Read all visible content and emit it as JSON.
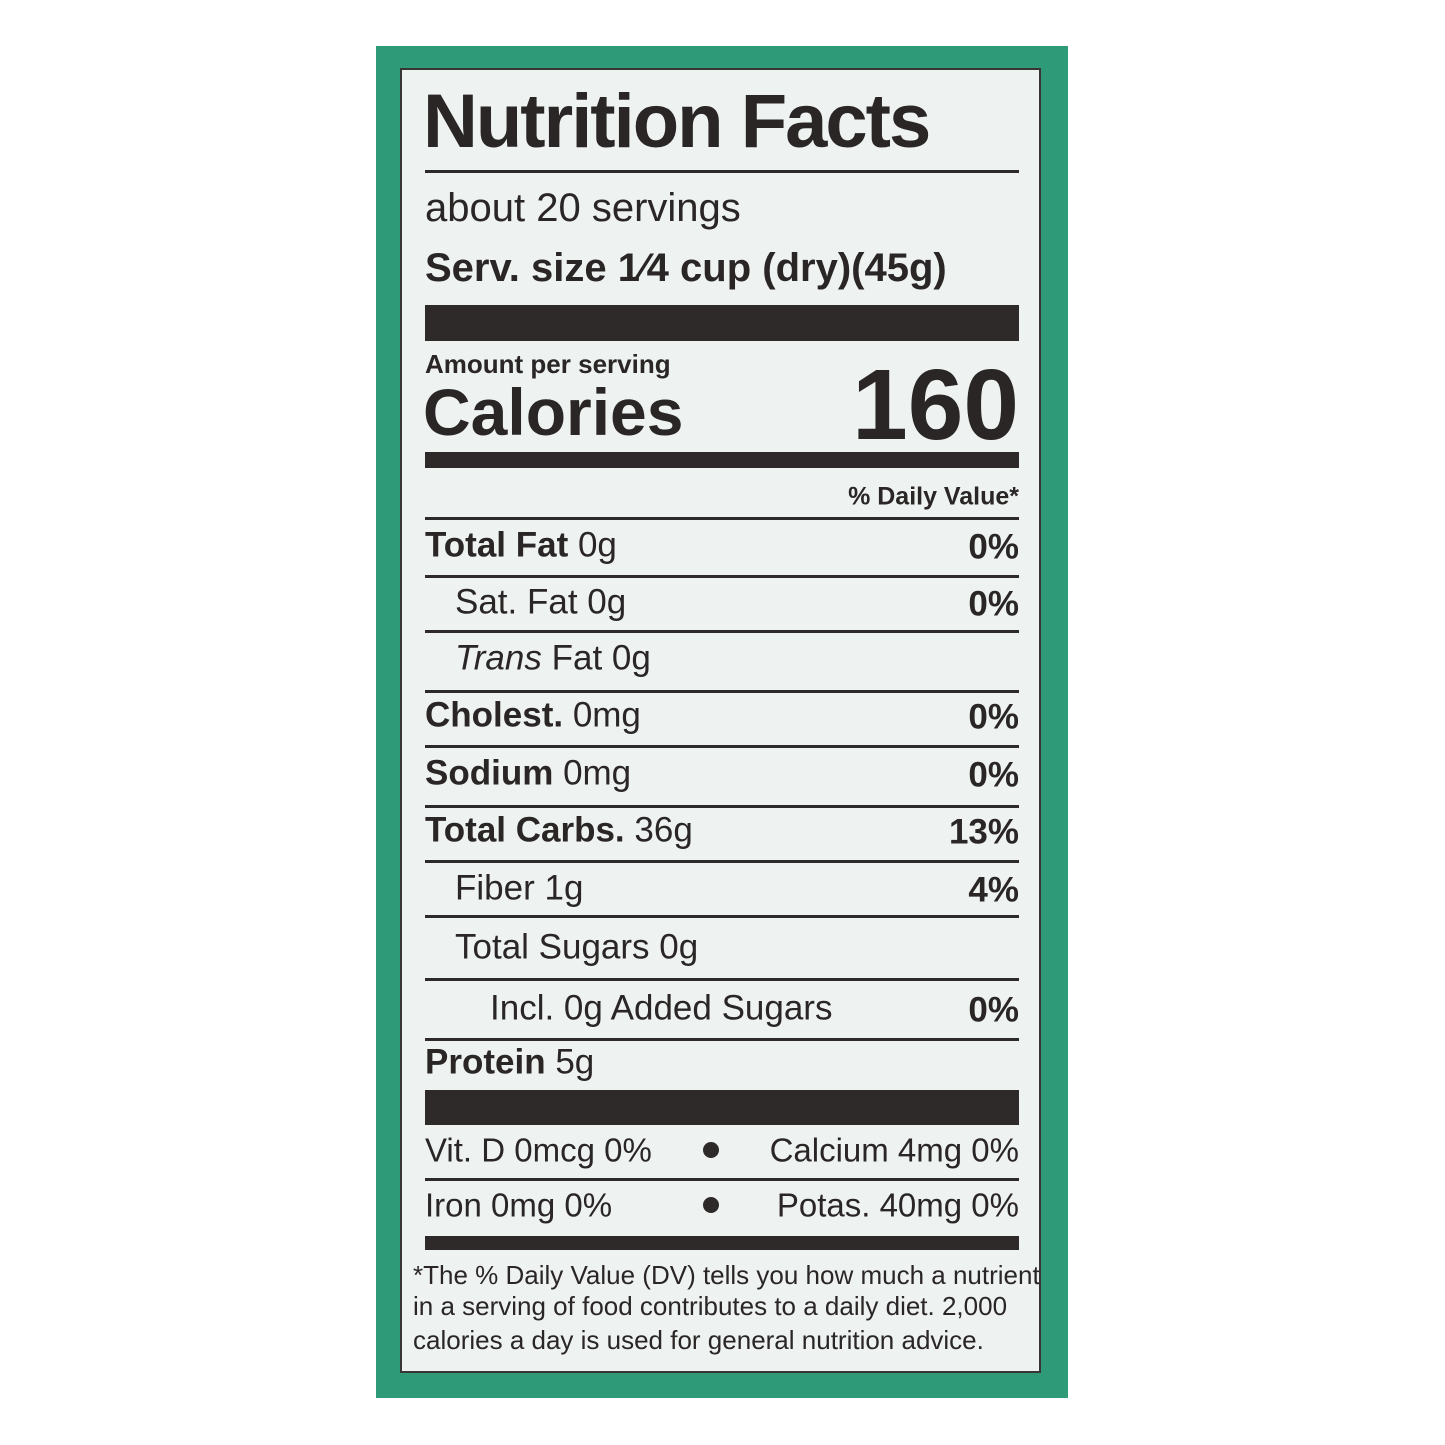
{
  "header": {
    "title": "Nutrition Facts",
    "servings": "about 20 servings",
    "serving_size_label": "Serv. size",
    "serving_size": "1⁄4 cup (dry)(45g)"
  },
  "calories": {
    "amount_label": "Amount per serving",
    "label": "Calories",
    "value": "160"
  },
  "daily_value_header": "% Daily Value*",
  "nutrients": [
    {
      "name": "Total Fat",
      "amount": "0g",
      "dv": "0%",
      "level": 0,
      "bold": true
    },
    {
      "name": "Sat. Fat",
      "amount": "0g",
      "dv": "0%",
      "level": 1,
      "bold": false
    },
    {
      "italic": "Trans",
      "name": "Fat",
      "amount": "0g",
      "level": 1,
      "bold": false
    },
    {
      "name": "Cholest.",
      "amount": "0mg",
      "dv": "0%",
      "level": 0,
      "bold": true
    },
    {
      "name": "Sodium",
      "amount": "0mg",
      "dv": "0%",
      "level": 0,
      "bold": true
    },
    {
      "name": "Total Carbs.",
      "amount": "36g",
      "dv": "13%",
      "level": 0,
      "bold": true
    },
    {
      "name": "Fiber",
      "amount": "1g",
      "dv": "4%",
      "level": 1,
      "bold": false
    },
    {
      "name": "Total Sugars",
      "amount": "0g",
      "level": 1,
      "bold": false
    },
    {
      "name": "Incl. 0g Added Sugars",
      "dv": "0%",
      "level": 2,
      "bold": false
    },
    {
      "name": "Protein",
      "amount": "5g",
      "level": 0,
      "bold": true
    }
  ],
  "vitamins": [
    [
      "Vit. D 0mcg 0%",
      "Calcium 4mg 0%"
    ],
    [
      "Iron 0mg 0%",
      "Potas. 40mg 0%"
    ]
  ],
  "footnote": [
    "*The % Daily Value (DV) tells you how much a nutrient",
    "in a serving of food contributes to a daily diet. 2,000",
    "calories a day is used for general nutrition advice."
  ]
}
